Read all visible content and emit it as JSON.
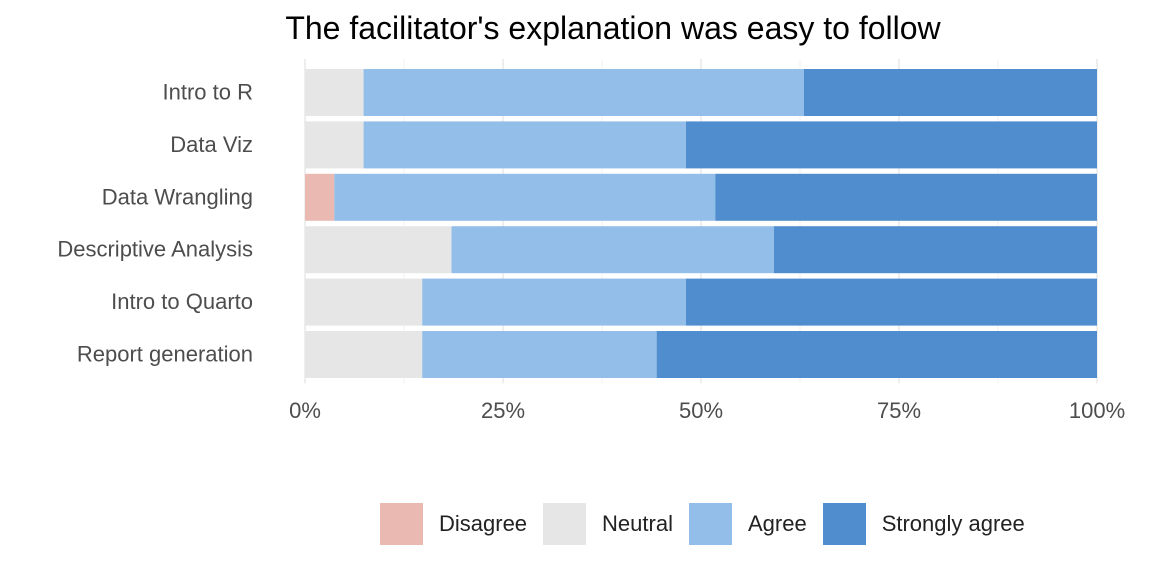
{
  "chart_data": {
    "type": "bar",
    "orientation": "horizontal",
    "stacked": "percent",
    "title": "The facilitator's explanation was easy to follow",
    "xlabel": "",
    "ylabel": "",
    "xlim": [
      0,
      100
    ],
    "x_ticks": [
      "0%",
      "25%",
      "50%",
      "75%",
      "100%"
    ],
    "categories": [
      "Intro to R",
      "Data Viz",
      "Data Wrangling",
      "Descriptive Analysis",
      "Intro to Quarto",
      "Report generation"
    ],
    "series": [
      {
        "name": "Disagree",
        "color": "#EABAB2",
        "values": [
          0,
          0,
          3.7,
          0,
          0,
          0
        ]
      },
      {
        "name": "Neutral",
        "color": "#E6E6E6",
        "values": [
          7.4,
          7.4,
          0,
          18.5,
          14.8,
          14.8
        ]
      },
      {
        "name": "Agree",
        "color": "#93BEE9",
        "values": [
          55.6,
          40.7,
          48.1,
          40.7,
          33.3,
          29.6
        ]
      },
      {
        "name": "Strongly agree",
        "color": "#4F8DCF",
        "values": [
          37.0,
          51.9,
          48.2,
          40.8,
          51.9,
          55.6
        ]
      }
    ],
    "grid": true,
    "legend_position": "bottom"
  }
}
